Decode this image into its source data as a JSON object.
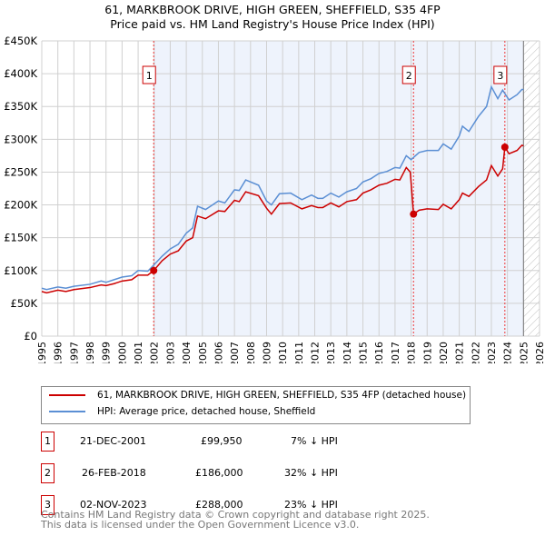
{
  "title": "61, MARKBROOK DRIVE, HIGH GREEN, SHEFFIELD, S35 4FP",
  "subtitle": "Price paid vs. HM Land Registry's House Price Index (HPI)",
  "chart_data": {
    "type": "line",
    "xlim": [
      1995,
      2026
    ],
    "ylim": [
      0,
      450000
    ],
    "yticks": [
      0,
      50000,
      100000,
      150000,
      200000,
      250000,
      300000,
      350000,
      400000,
      450000
    ],
    "ytick_labels": [
      "£0",
      "£50K",
      "£100K",
      "£150K",
      "£200K",
      "£250K",
      "£300K",
      "£350K",
      "£400K",
      "£450K"
    ],
    "xticks": [
      1995,
      1996,
      1997,
      1998,
      1999,
      2000,
      2001,
      2002,
      2003,
      2004,
      2005,
      2006,
      2007,
      2008,
      2009,
      2010,
      2011,
      2012,
      2013,
      2014,
      2015,
      2016,
      2017,
      2018,
      2019,
      2020,
      2021,
      2022,
      2023,
      2024,
      2025,
      2026
    ],
    "shaded_range": [
      2001.97,
      2025.0
    ],
    "hatched_from": 2025.0,
    "series": [
      {
        "name": "61, MARKBROOK DRIVE, HIGH GREEN, SHEFFIELD, S35 4FP (detached house)",
        "color": "#cc0000",
        "x": [
          1995,
          1995.3,
          1996,
          1996.5,
          1997,
          1998,
          1998.7,
          1999,
          1999.5,
          2000,
          2000.6,
          2001,
          2001.6,
          2001.97,
          2002.5,
          2003,
          2003.5,
          2004,
          2004.4,
          2004.7,
          2005.2,
          2006,
          2006.4,
          2007,
          2007.3,
          2007.7,
          2008.5,
          2009,
          2009.3,
          2009.8,
          2010.5,
          2011.2,
          2011.8,
          2012.2,
          2012.5,
          2013,
          2013.5,
          2014,
          2014.6,
          2015,
          2015.5,
          2016,
          2016.5,
          2017,
          2017.3,
          2017.7,
          2017.95,
          2018.15,
          2018.5,
          2019,
          2019.7,
          2020,
          2020.5,
          2021,
          2021.2,
          2021.6,
          2022.2,
          2022.7,
          2023,
          2023.4,
          2023.7,
          2023.84,
          2024.1,
          2024.6,
          2024.9,
          2025
        ],
        "y": [
          68000,
          66000,
          70000,
          68000,
          71000,
          74000,
          78000,
          77000,
          80000,
          84000,
          86000,
          93000,
          93000,
          99950,
          115000,
          125000,
          130000,
          145000,
          150000,
          183000,
          179000,
          191000,
          190000,
          207000,
          205000,
          220000,
          214000,
          195000,
          186000,
          202000,
          203000,
          194000,
          199000,
          196000,
          196000,
          203000,
          197000,
          205000,
          208000,
          218000,
          223000,
          230000,
          233000,
          239000,
          238000,
          257000,
          250000,
          186000,
          192000,
          194000,
          193000,
          201000,
          194000,
          208000,
          218000,
          213000,
          228000,
          238000,
          260000,
          244000,
          255000,
          288000,
          278000,
          283000,
          291000,
          290000
        ]
      },
      {
        "name": "HPI: Average price, detached house, Sheffield",
        "color": "#5b8fd4",
        "x": [
          1995,
          1995.3,
          1996,
          1996.5,
          1997,
          1998,
          1998.7,
          1999,
          1999.5,
          2000,
          2000.6,
          2001,
          2001.6,
          2002,
          2002.5,
          2003,
          2003.5,
          2004,
          2004.4,
          2004.7,
          2005.2,
          2006,
          2006.4,
          2007,
          2007.3,
          2007.7,
          2008.5,
          2009,
          2009.3,
          2009.8,
          2010.5,
          2011.2,
          2011.8,
          2012.2,
          2012.5,
          2013,
          2013.5,
          2014,
          2014.6,
          2015,
          2015.5,
          2016,
          2016.5,
          2017,
          2017.3,
          2017.7,
          2018,
          2018.5,
          2019,
          2019.7,
          2020,
          2020.5,
          2021,
          2021.2,
          2021.6,
          2022.2,
          2022.7,
          2023,
          2023.4,
          2023.7,
          2024.1,
          2024.6,
          2024.9,
          2025
        ],
        "y": [
          73000,
          71000,
          75000,
          73000,
          76000,
          79000,
          84000,
          82000,
          86000,
          90000,
          92000,
          100000,
          99000,
          109000,
          122000,
          133000,
          140000,
          157000,
          165000,
          198000,
          193000,
          206000,
          203000,
          223000,
          222000,
          238000,
          230000,
          206000,
          200000,
          217000,
          218000,
          208000,
          215000,
          210000,
          210000,
          218000,
          212000,
          220000,
          225000,
          235000,
          240000,
          248000,
          251000,
          257000,
          256000,
          275000,
          269000,
          280000,
          283000,
          283000,
          293000,
          285000,
          305000,
          320000,
          312000,
          335000,
          350000,
          380000,
          362000,
          375000,
          360000,
          368000,
          376000,
          376000
        ]
      }
    ],
    "markers": [
      {
        "label": "1",
        "x": 2001.97,
        "y": 99950
      },
      {
        "label": "2",
        "x": 2018.15,
        "y": 186000
      },
      {
        "label": "3",
        "x": 2023.84,
        "y": 288000
      }
    ]
  },
  "legend": [
    "61, MARKBROOK DRIVE, HIGH GREEN, SHEFFIELD, S35 4FP (detached house)",
    "HPI: Average price, detached house, Sheffield"
  ],
  "transactions": [
    {
      "num": "1",
      "date": "21-DEC-2001",
      "price": "£99,950",
      "hpi": "7% ↓ HPI"
    },
    {
      "num": "2",
      "date": "26-FEB-2018",
      "price": "£186,000",
      "hpi": "32% ↓ HPI"
    },
    {
      "num": "3",
      "date": "02-NOV-2023",
      "price": "£288,000",
      "hpi": "23% ↓ HPI"
    }
  ],
  "footer": [
    "Contains HM Land Registry data © Crown copyright and database right 2025.",
    "This data is licensed under the Open Government Licence v3.0."
  ]
}
